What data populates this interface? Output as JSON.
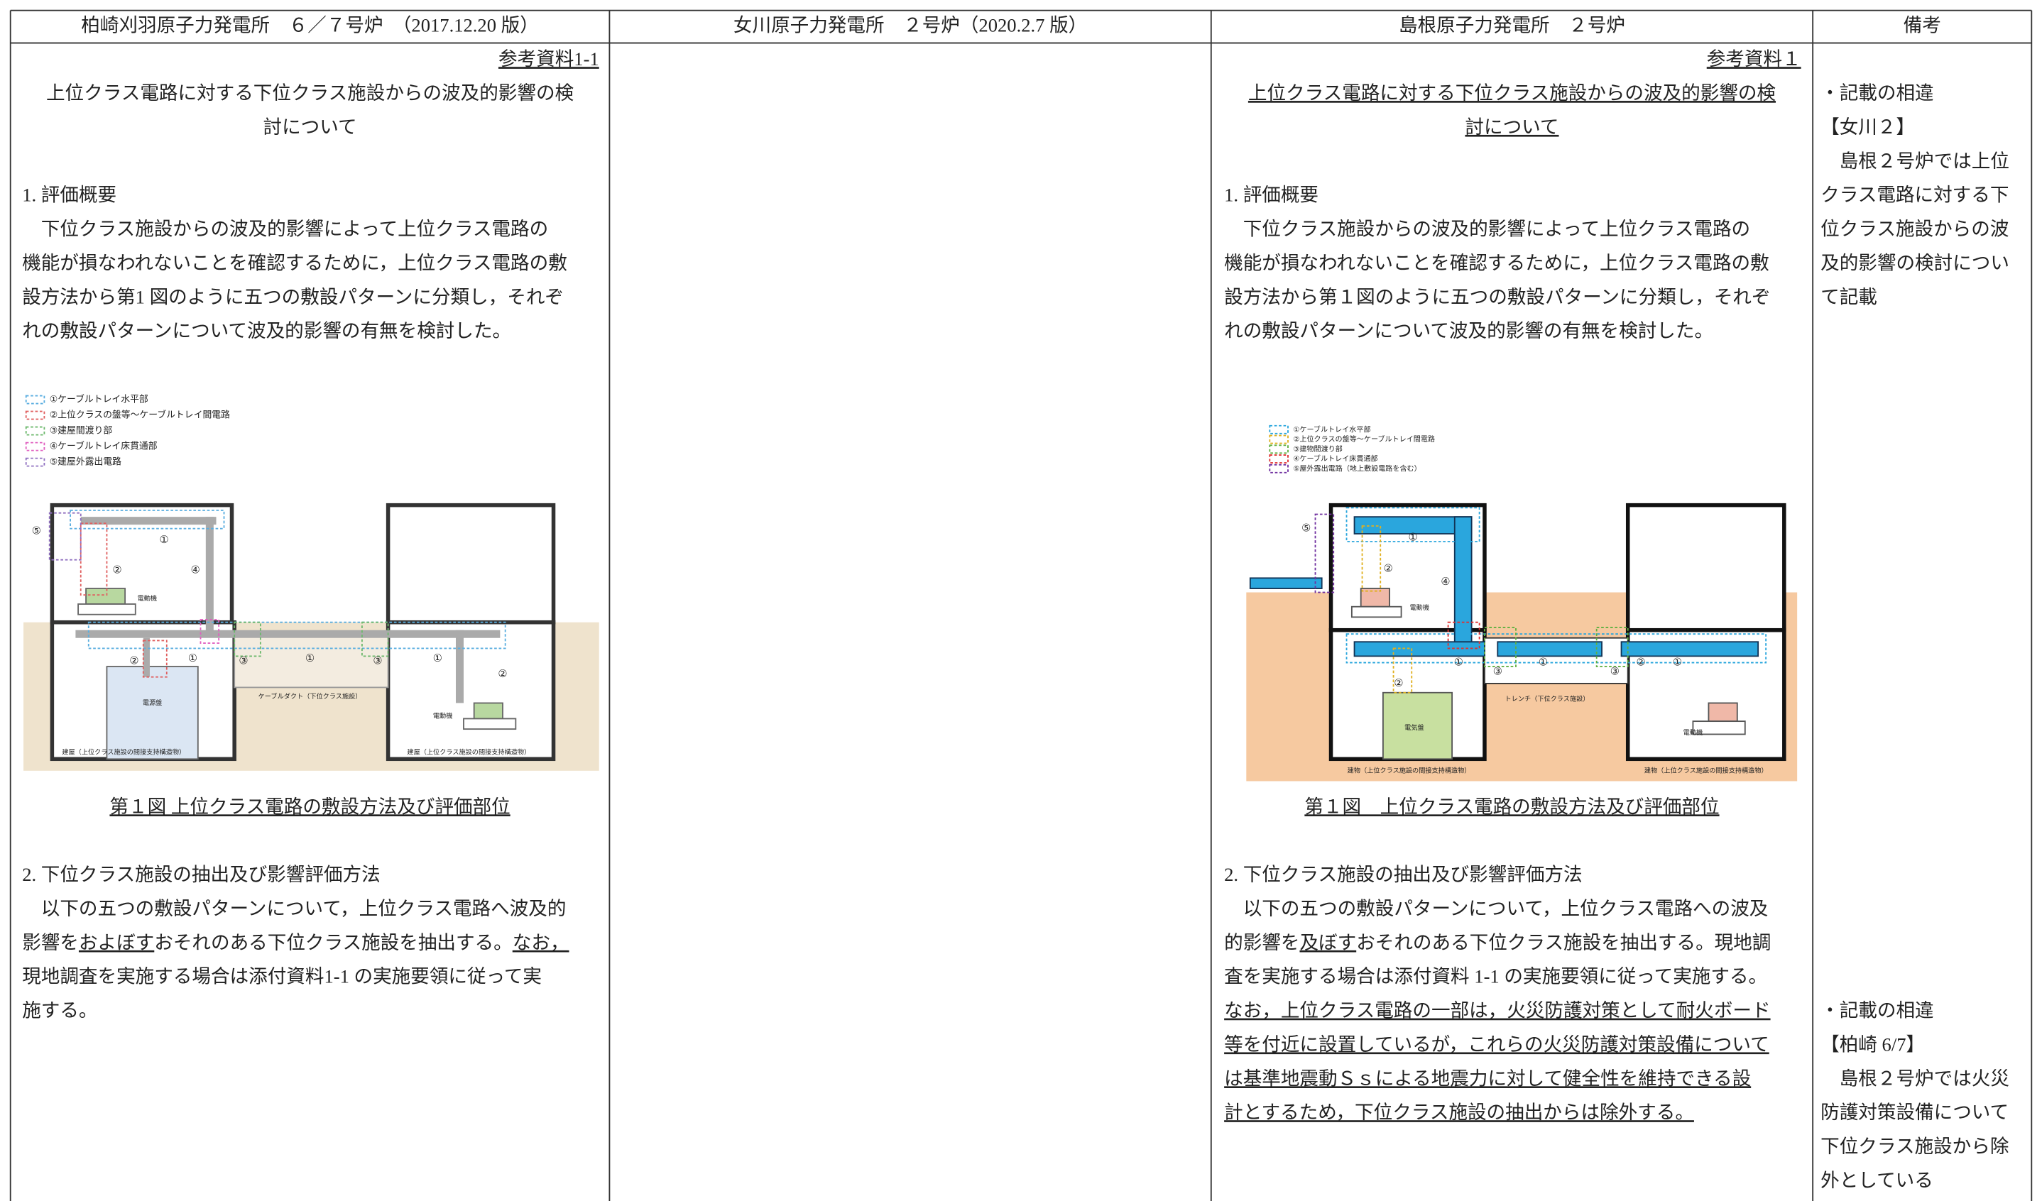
{
  "header": [
    "柏崎刈羽原子力発電所　６／７号炉　（2017.12.20 版）",
    "女川原子力発電所　２号炉（2020.2.7 版）",
    "島根原子力発電所　２号炉",
    "備考"
  ],
  "kk": {
    "ref": {
      "text": "参考資料1-1",
      "underline": true
    },
    "title": [
      "上位クラス電路に対する下位クラス施設からの波及的影響の検",
      "討について"
    ],
    "sec1": "1. 評価概要",
    "para1": [
      "　下位クラス施設からの波及的影響によって上位クラス電路の",
      "機能が損なわれないことを確認するために，上位クラス電路の敷",
      "設方法から第1 図のように五つの敷設パターンに分類し，それぞ",
      "れの敷設パターンについて波及的影響の有無を検討した。"
    ],
    "figure": {
      "legend": [
        "①ケーブルトレイ水平部",
        "②上位クラスの盤等～ケーブルトレイ間電路",
        "③建屋間渡り部",
        "④ケーブルトレイ床貫通部",
        "⑤建屋外露出電路"
      ],
      "labels": [
        "電動機",
        "電源盤",
        "ケーブルダクト（下位クラス施設）",
        "電動機",
        "建屋（上位クラス施設の間接支持構造物）",
        "建屋（上位クラス施設の間接支持構造物）"
      ],
      "callouts": [
        "⑤",
        "①",
        "②",
        "④",
        "①",
        "②",
        "③",
        "①",
        "③",
        "①",
        "②"
      ]
    },
    "caption": {
      "text": "第１図 上位クラス電路の敷設方法及び評価部位",
      "underline": true
    },
    "sec2": "2. 下位クラス施設の抽出及び影響評価方法",
    "para2": [
      "　以下の五つの敷設パターンについて，上位クラス電路へ波及的",
      [
        "影響を",
        {
          "text": "およぼす",
          "underline": true
        },
        "おそれのある下位クラス施設を抽出する。",
        {
          "text": "なお，",
          "underline": true
        }
      ],
      "現地調査を実施する場合は添付資料1-1 の実施要領に従って実",
      "施する。"
    ]
  },
  "shimane": {
    "ref": {
      "text": "参考資料１",
      "underline": true
    },
    "title": [
      {
        "text": "上位クラス電路に対する下位クラス施設からの波及的影響の検",
        "underline": true
      },
      {
        "text": "討について",
        "underline": true
      }
    ],
    "sec1": "1. 評価概要",
    "para1": [
      "　下位クラス施設からの波及的影響によって上位クラス電路の",
      "機能が損なわれないことを確認するために，上位クラス電路の敷",
      "設方法から第１図のように五つの敷設パターンに分類し，それぞ",
      "れの敷設パターンについて波及的影響の有無を検討した。"
    ],
    "figure": {
      "legend": [
        "①ケーブルトレイ水平部",
        "②上位クラスの盤等～ケーブルトレイ間電路",
        "③建物間渡り部",
        "④ケーブルトレイ床貫通部",
        "⑤屋外露出電路（地上敷設電路を含む）"
      ],
      "labels": [
        "電動機",
        "電気盤",
        "トレンチ（下位クラス施設）",
        "電動機",
        "建物（上位クラス施設の間接支持構造物）",
        "建物（上位クラス施設の間接支持構造物）"
      ],
      "callouts": [
        "⑤",
        "①",
        "②",
        "④",
        "①",
        "②",
        "③",
        "①",
        "③",
        "①",
        "②"
      ]
    },
    "caption": {
      "text": "第１図　上位クラス電路の敷設方法及び評価部位",
      "underline": true
    },
    "sec2": "2. 下位クラス施設の抽出及び影響評価方法",
    "para2": [
      "　以下の五つの敷設パターンについて，上位クラス電路への波及",
      [
        "的影響を",
        {
          "text": "及ぼす",
          "underline": true
        },
        "おそれのある下位クラス施設を抽出する。現地調"
      ],
      "査を実施する場合は添付資料 1-1 の実施要領に従って実施する。",
      {
        "text": "なお，上位クラス電路の一部は，火災防護対策として耐火ボード",
        "underline": true
      },
      {
        "text": "等を付近に設置しているが，これらの火災防護対策設備について",
        "underline": true
      },
      {
        "text": "は基準地震動Ｓｓによる地震力に対して健全性を維持できる設",
        "underline": true
      },
      {
        "text": "計とするため，下位クラス施設の抽出からは除外する。",
        "underline": true
      }
    ]
  },
  "remarks": [
    [
      "・記載の相違",
      "【女川２】",
      "　島根２号炉では上位",
      "クラス電路に対する下",
      "位クラス施設からの波",
      "及的影響の検討につい",
      "て記載"
    ],
    [
      "・記載の相違",
      "【柏崎 6/7】",
      "　島根２号炉では火災",
      "防護対策設備について",
      "下位クラス施設から除",
      "外としている"
    ]
  ]
}
